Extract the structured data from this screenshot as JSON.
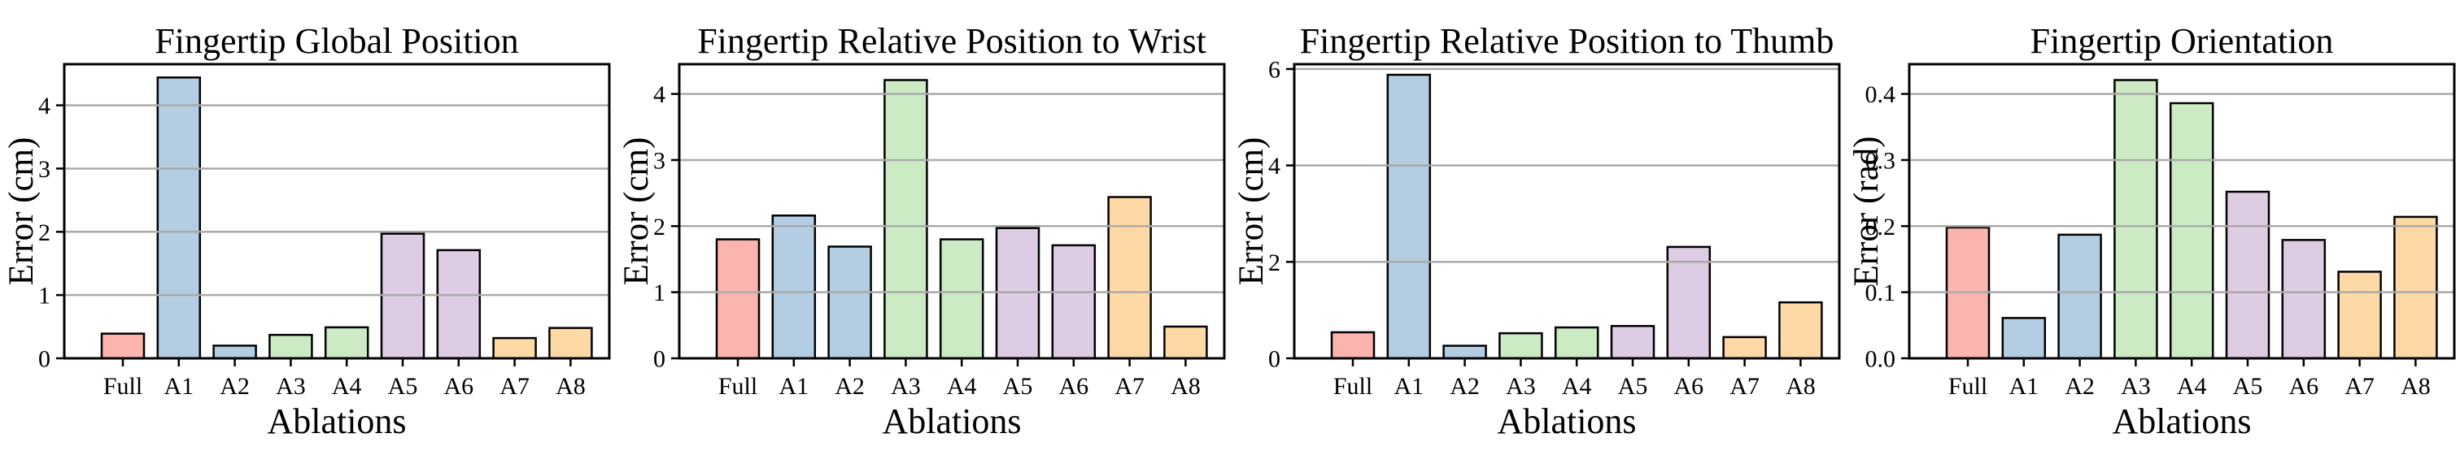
{
  "figure": {
    "background": "#ffffff",
    "grid_color": "#aaaaaa",
    "axis_color": "#000000",
    "bar_edge_color": "#000000",
    "categories": [
      "Full",
      "A1",
      "A2",
      "A3",
      "A4",
      "A5",
      "A6",
      "A7",
      "A8"
    ],
    "bar_colors": [
      "#fbb4ae",
      "#b3cde3",
      "#b3cde3",
      "#ccebc5",
      "#ccebc5",
      "#decbe4",
      "#decbe4",
      "#fed9a6",
      "#fed9a6"
    ],
    "xlabel": "Ablations"
  },
  "chart_data": [
    {
      "type": "bar",
      "title": "Fingertip Global Position",
      "ylabel": "Error (cm)",
      "xlabel": "Ablations",
      "categories": [
        "Full",
        "A1",
        "A2",
        "A3",
        "A4",
        "A5",
        "A6",
        "A7",
        "A8"
      ],
      "values": [
        0.39,
        4.44,
        0.2,
        0.37,
        0.49,
        1.97,
        1.71,
        0.32,
        0.48
      ],
      "ylim": [
        0,
        4.65
      ],
      "ytick_values": [
        0,
        1,
        2,
        3,
        4
      ],
      "ytick_labels": [
        "0",
        "1",
        "2",
        "3",
        "4"
      ],
      "grid": "horizontal",
      "legend": "none"
    },
    {
      "type": "bar",
      "title": "Fingertip Relative Position to Wrist",
      "ylabel": "Error (cm)",
      "xlabel": "Ablations",
      "categories": [
        "Full",
        "A1",
        "A2",
        "A3",
        "A4",
        "A5",
        "A6",
        "A7",
        "A8"
      ],
      "values": [
        1.8,
        2.16,
        1.69,
        4.21,
        1.8,
        1.97,
        1.71,
        2.44,
        0.48
      ],
      "ylim": [
        0,
        4.45
      ],
      "ytick_values": [
        0,
        1,
        2,
        3,
        4
      ],
      "ytick_labels": [
        "0",
        "1",
        "2",
        "3",
        "4"
      ],
      "grid": "horizontal",
      "legend": "none"
    },
    {
      "type": "bar",
      "title": "Fingertip Relative Position to Thumb",
      "ylabel": "Error (cm)",
      "xlabel": "Ablations",
      "categories": [
        "Full",
        "A1",
        "A2",
        "A3",
        "A4",
        "A5",
        "A6",
        "A7",
        "A8"
      ],
      "values": [
        0.54,
        5.88,
        0.26,
        0.52,
        0.64,
        0.67,
        2.31,
        0.44,
        1.16
      ],
      "ylim": [
        0,
        6.1
      ],
      "ytick_values": [
        0,
        2,
        4,
        6
      ],
      "ytick_labels": [
        "0",
        "2",
        "4",
        "6"
      ],
      "grid": "horizontal",
      "legend": "none"
    },
    {
      "type": "bar",
      "title": "Fingertip Orientation",
      "ylabel": "Error (rad)",
      "xlabel": "Ablations",
      "categories": [
        "Full",
        "A1",
        "A2",
        "A3",
        "A4",
        "A5",
        "A6",
        "A7",
        "A8"
      ],
      "values": [
        0.198,
        0.061,
        0.187,
        0.421,
        0.386,
        0.252,
        0.179,
        0.131,
        0.214
      ],
      "ylim": [
        0,
        0.445
      ],
      "ytick_values": [
        0.0,
        0.1,
        0.2,
        0.3,
        0.4
      ],
      "ytick_labels": [
        "0.0",
        "0.1",
        "0.2",
        "0.3",
        "0.4"
      ],
      "grid": "horizontal",
      "legend": "none"
    }
  ]
}
